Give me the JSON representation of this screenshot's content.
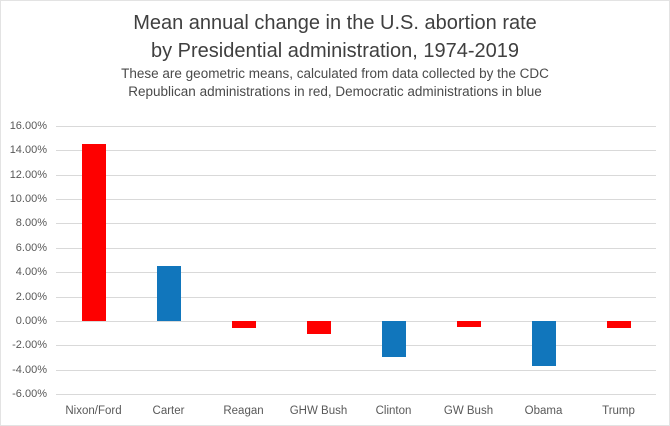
{
  "chart_data": {
    "type": "bar",
    "title_lines": [
      "Mean annual change in the U.S. abortion rate",
      "by Presidential administration, 1974-2019"
    ],
    "subtitle_lines": [
      "These are geometric means, calculated from data collected by the CDC",
      "Republican administrations in red, Democratic administrations in blue"
    ],
    "categories": [
      "Nixon/Ford",
      "Carter",
      "Reagan",
      "GHW Bush",
      "Clinton",
      "GW Bush",
      "Obama",
      "Trump"
    ],
    "values": [
      14.5,
      4.5,
      -0.6,
      -1.1,
      -3.0,
      -0.5,
      -3.7,
      -0.6
    ],
    "unit": "%",
    "parties": [
      "Republican",
      "Democratic",
      "Republican",
      "Republican",
      "Democratic",
      "Republican",
      "Democratic",
      "Republican"
    ],
    "party_colors": {
      "Republican": "#fe0000",
      "Democratic": "#1176bc"
    },
    "ylim": [
      -6,
      16
    ],
    "ytick_step": 2,
    "ytick_labels": [
      "16.00%",
      "14.00%",
      "12.00%",
      "10.00%",
      "8.00%",
      "6.00%",
      "4.00%",
      "2.00%",
      "0.00%",
      "-2.00%",
      "-4.00%",
      "-6.00%"
    ],
    "xlabel": "",
    "ylabel": "",
    "grid": true,
    "gridline_color": "#d9d9d9",
    "axis_text_color": "#595959",
    "title_color": "#3f3f3f",
    "legend_position": "none"
  }
}
